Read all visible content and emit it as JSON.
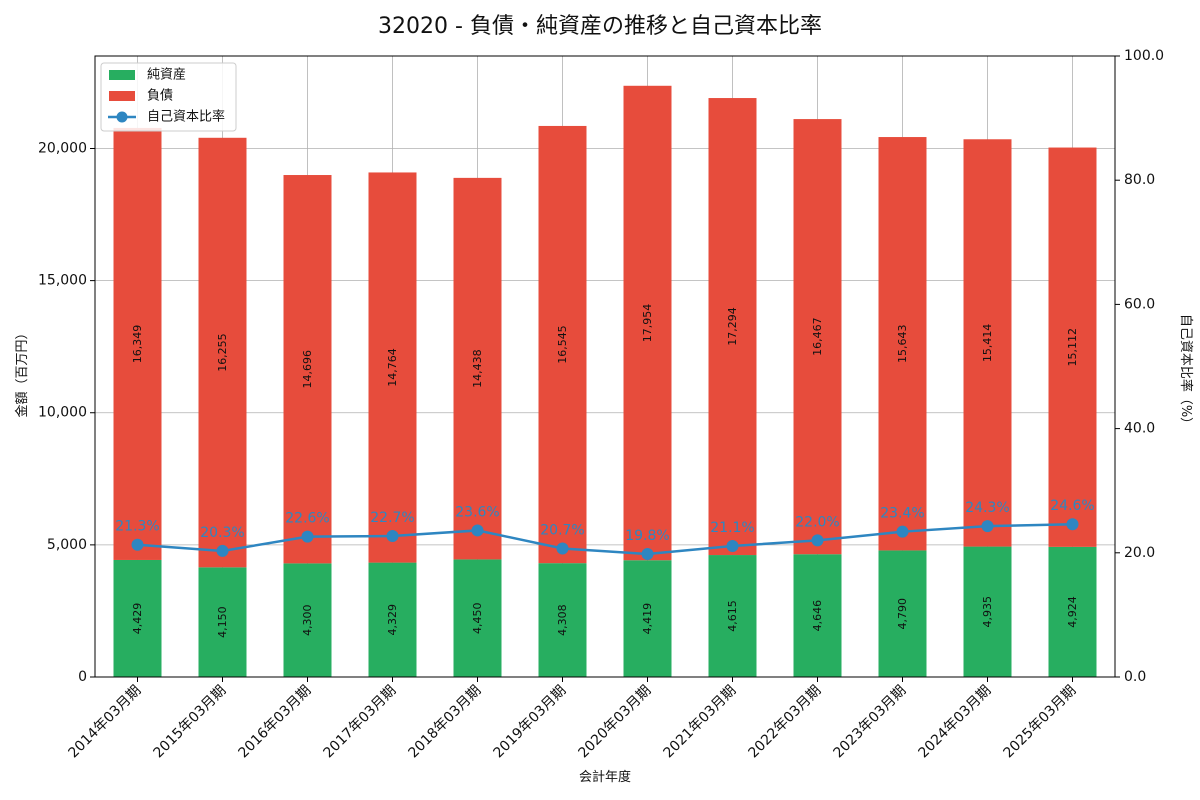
{
  "chart_data": {
    "type": "bar",
    "title": "32020 - 負債・純資産の推移と自己資本比率",
    "xlabel": "会計年度",
    "ylabel": "金額（百万円）",
    "y2label": "自己資本比率（%）",
    "categories": [
      "2014年03月期",
      "2015年03月期",
      "2016年03月期",
      "2017年03月期",
      "2018年03月期",
      "2019年03月期",
      "2020年03月期",
      "2021年03月期",
      "2022年03月期",
      "2023年03月期",
      "2024年03月期",
      "2025年03月期"
    ],
    "series": [
      {
        "name": "純資産",
        "kind": "bar",
        "stack": "bottom",
        "color": "#27ae60",
        "values": [
          4429,
          4150,
          4300,
          4329,
          4450,
          4308,
          4419,
          4615,
          4646,
          4790,
          4935,
          4924
        ],
        "labels": [
          "4,429",
          "4,150",
          "4,300",
          "4,329",
          "4,450",
          "4,308",
          "4,419",
          "4,615",
          "4,646",
          "4,790",
          "4,935",
          "4,924"
        ]
      },
      {
        "name": "負債",
        "kind": "bar",
        "stack": "top",
        "color": "#e74c3c",
        "values": [
          16349,
          16255,
          14696,
          14764,
          14438,
          16545,
          17954,
          17294,
          16467,
          15643,
          15414,
          15112
        ],
        "labels": [
          "16,349",
          "16,255",
          "14,696",
          "14,764",
          "14,438",
          "16,545",
          "17,954",
          "17,294",
          "16,467",
          "15,643",
          "15,414",
          "15,112"
        ]
      },
      {
        "name": "自己資本比率",
        "kind": "line",
        "axis": "right",
        "color": "#2e86c1",
        "values": [
          21.3,
          20.3,
          22.6,
          22.7,
          23.6,
          20.7,
          19.8,
          21.1,
          22.0,
          23.4,
          24.3,
          24.6
        ],
        "labels": [
          "21.3%",
          "20.3%",
          "22.6%",
          "22.7%",
          "23.6%",
          "20.7%",
          "19.8%",
          "21.1%",
          "22.0%",
          "23.4%",
          "24.3%",
          "24.6%"
        ]
      }
    ],
    "ylim": [
      0,
      23500
    ],
    "yticks": [
      0,
      5000,
      10000,
      15000,
      20000
    ],
    "ytick_labels": [
      "0",
      "5,000",
      "10,000",
      "15,000",
      "20,000"
    ],
    "y2lim": [
      0,
      100
    ],
    "y2ticks": [
      0,
      20,
      40,
      60,
      80,
      100
    ],
    "y2tick_labels": [
      "0.0",
      "20.0",
      "40.0",
      "60.0",
      "80.0",
      "100.0"
    ],
    "grid": true,
    "legend_position": "top-left"
  }
}
